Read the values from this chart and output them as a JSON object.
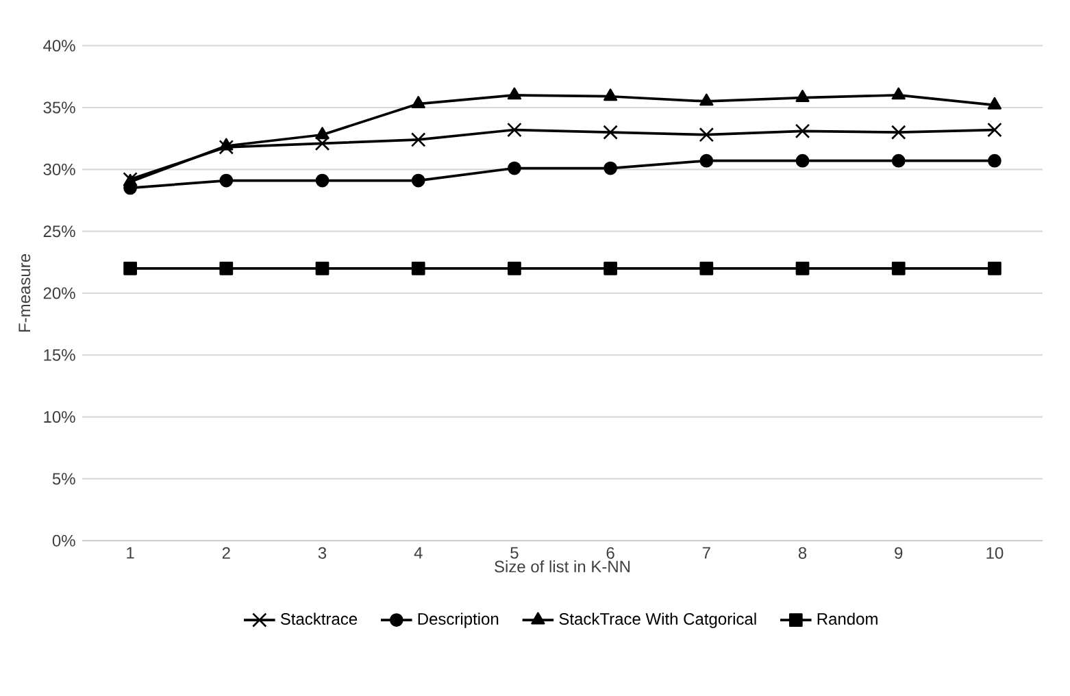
{
  "chart_data": {
    "type": "line",
    "xlabel": "Size of list in K-NN",
    "ylabel": "F-measure",
    "categories": [
      "1",
      "2",
      "3",
      "4",
      "5",
      "6",
      "7",
      "8",
      "9",
      "10"
    ],
    "series": [
      {
        "name": "Stacktrace",
        "color": "#000000",
        "marker": "cross",
        "values": [
          29.2,
          31.8,
          32.1,
          32.4,
          33.2,
          33.0,
          32.8,
          33.1,
          33.0,
          33.2
        ]
      },
      {
        "name": "Description",
        "color": "#000000",
        "marker": "circle",
        "values": [
          28.5,
          29.1,
          29.1,
          29.1,
          30.1,
          30.1,
          30.7,
          30.7,
          30.7,
          30.7
        ]
      },
      {
        "name": "StackTrace With Catgorical",
        "color": "#000000",
        "marker": "triangle",
        "values": [
          29.0,
          31.9,
          32.8,
          35.3,
          36.0,
          35.9,
          35.5,
          35.8,
          36.0,
          35.2
        ]
      },
      {
        "name": "Random",
        "color": "#000000",
        "marker": "square",
        "values": [
          22,
          22,
          22,
          22,
          22,
          22,
          22,
          22,
          22,
          22
        ]
      }
    ],
    "ylim": [
      0,
      40
    ],
    "yticks": [
      {
        "value": 0,
        "label": "0%"
      },
      {
        "value": 5,
        "label": "5%"
      },
      {
        "value": 10,
        "label": "10%"
      },
      {
        "value": 15,
        "label": "15%"
      },
      {
        "value": 20,
        "label": "20%"
      },
      {
        "value": 25,
        "label": "25%"
      },
      {
        "value": 30,
        "label": "30%"
      },
      {
        "value": 35,
        "label": "35%"
      },
      {
        "value": 40,
        "label": "40%"
      }
    ],
    "grid": "y",
    "legend": "bottom",
    "line_style": "solid"
  }
}
